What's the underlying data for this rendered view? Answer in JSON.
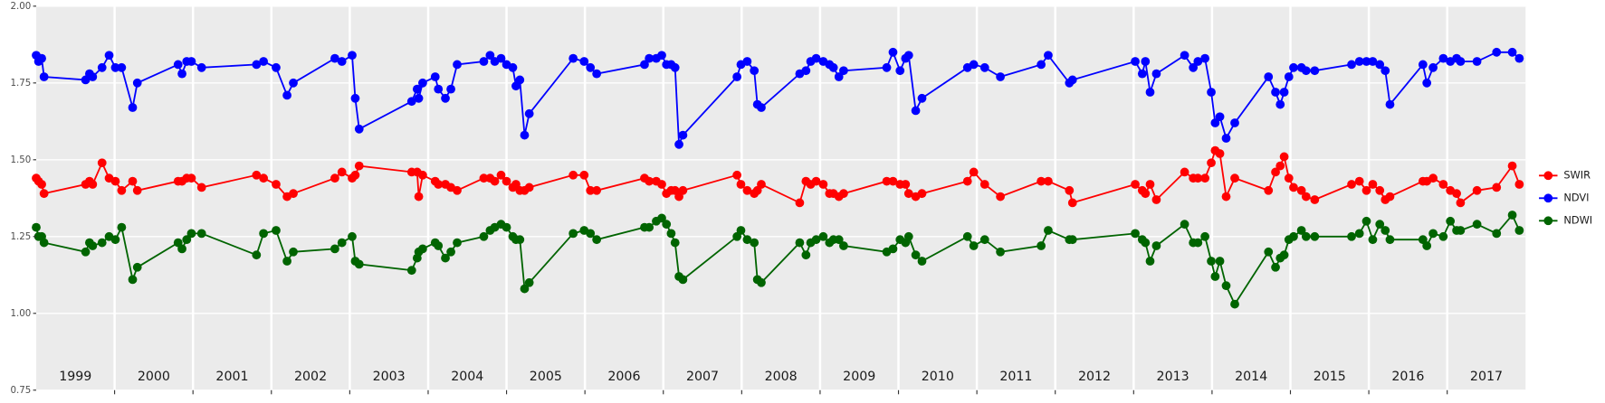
{
  "chart_data": {
    "type": "line",
    "x": [
      1999.0,
      1999.03,
      1999.07,
      1999.1,
      1999.63,
      1999.68,
      1999.72,
      1999.84,
      1999.93,
      2000.01,
      2000.09,
      2000.23,
      2000.29,
      2000.81,
      2000.86,
      2000.92,
      2000.98,
      2001.11,
      2001.81,
      2001.9,
      2002.06,
      2002.2,
      2002.28,
      2002.81,
      2002.9,
      2003.03,
      2003.07,
      2003.12,
      2003.79,
      2003.86,
      2003.88,
      2003.93,
      2004.09,
      2004.13,
      2004.22,
      2004.29,
      2004.37,
      2004.71,
      2004.79,
      2004.85,
      2004.93,
      2005.0,
      2005.08,
      2005.12,
      2005.17,
      2005.23,
      2005.29,
      2005.85,
      2005.99,
      2006.07,
      2006.15,
      2006.76,
      2006.82,
      2006.91,
      2006.98,
      2007.04,
      2007.1,
      2007.15,
      2007.2,
      2007.25,
      2007.94,
      2007.99,
      2008.07,
      2008.16,
      2008.2,
      2008.25,
      2008.74,
      2008.82,
      2008.88,
      2008.95,
      2009.04,
      2009.12,
      2009.17,
      2009.24,
      2009.3,
      2009.85,
      2009.93,
      2010.02,
      2010.09,
      2010.13,
      2010.22,
      2010.3,
      2010.88,
      2010.96,
      2011.1,
      2011.3,
      2011.82,
      2011.91,
      2012.18,
      2012.22,
      2013.02,
      2013.11,
      2013.15,
      2013.21,
      2013.29,
      2013.65,
      2013.76,
      2013.82,
      2013.91,
      2013.99,
      2014.04,
      2014.1,
      2014.18,
      2014.29,
      2014.72,
      2014.81,
      2014.87,
      2014.92,
      2014.98,
      2015.04,
      2015.14,
      2015.2,
      2015.31,
      2015.78,
      2015.88,
      2015.97,
      2016.05,
      2016.14,
      2016.21,
      2016.27,
      2016.69,
      2016.74,
      2016.82,
      2016.95,
      2017.04,
      2017.12,
      2017.17,
      2017.38,
      2017.63,
      2017.83,
      2017.92
    ],
    "series": [
      {
        "name": "SWIR",
        "color": "#ff0000",
        "values": [
          1.44,
          1.43,
          1.42,
          1.39,
          1.42,
          1.43,
          1.42,
          1.49,
          1.44,
          1.43,
          1.4,
          1.43,
          1.4,
          1.43,
          1.43,
          1.44,
          1.44,
          1.41,
          1.45,
          1.44,
          1.42,
          1.38,
          1.39,
          1.44,
          1.46,
          1.44,
          1.45,
          1.48,
          1.46,
          1.46,
          1.38,
          1.45,
          1.43,
          1.42,
          1.42,
          1.41,
          1.4,
          1.44,
          1.44,
          1.43,
          1.45,
          1.43,
          1.41,
          1.42,
          1.4,
          1.4,
          1.41,
          1.45,
          1.45,
          1.4,
          1.4,
          1.44,
          1.43,
          1.43,
          1.42,
          1.39,
          1.4,
          1.4,
          1.38,
          1.4,
          1.45,
          1.42,
          1.4,
          1.39,
          1.4,
          1.42,
          1.36,
          1.43,
          1.42,
          1.43,
          1.42,
          1.39,
          1.39,
          1.38,
          1.39,
          1.43,
          1.43,
          1.42,
          1.42,
          1.39,
          1.38,
          1.39,
          1.43,
          1.46,
          1.42,
          1.38,
          1.43,
          1.43,
          1.4,
          1.36,
          1.42,
          1.4,
          1.39,
          1.42,
          1.37,
          1.46,
          1.44,
          1.44,
          1.44,
          1.49,
          1.53,
          1.52,
          1.38,
          1.44,
          1.4,
          1.46,
          1.48,
          1.51,
          1.44,
          1.41,
          1.4,
          1.38,
          1.37,
          1.42,
          1.43,
          1.4,
          1.42,
          1.4,
          1.37,
          1.38,
          1.43,
          1.43,
          1.44,
          1.42,
          1.4,
          1.39,
          1.36,
          1.4,
          1.41,
          1.48,
          1.42
        ]
      },
      {
        "name": "NDVI",
        "color": "#0000ff",
        "values": [
          1.84,
          1.82,
          1.83,
          1.77,
          1.76,
          1.78,
          1.77,
          1.8,
          1.84,
          1.8,
          1.8,
          1.67,
          1.75,
          1.81,
          1.78,
          1.82,
          1.82,
          1.8,
          1.81,
          1.82,
          1.8,
          1.71,
          1.75,
          1.83,
          1.82,
          1.84,
          1.7,
          1.6,
          1.69,
          1.73,
          1.7,
          1.75,
          1.77,
          1.73,
          1.7,
          1.73,
          1.81,
          1.82,
          1.84,
          1.82,
          1.83,
          1.81,
          1.8,
          1.74,
          1.76,
          1.58,
          1.65,
          1.83,
          1.82,
          1.8,
          1.78,
          1.81,
          1.83,
          1.83,
          1.84,
          1.81,
          1.81,
          1.8,
          1.55,
          1.58,
          1.77,
          1.81,
          1.82,
          1.79,
          1.68,
          1.67,
          1.78,
          1.79,
          1.82,
          1.83,
          1.82,
          1.81,
          1.8,
          1.77,
          1.79,
          1.8,
          1.85,
          1.79,
          1.83,
          1.84,
          1.66,
          1.7,
          1.8,
          1.81,
          1.8,
          1.77,
          1.81,
          1.84,
          1.75,
          1.76,
          1.82,
          1.78,
          1.82,
          1.72,
          1.78,
          1.84,
          1.8,
          1.82,
          1.83,
          1.72,
          1.62,
          1.64,
          1.57,
          1.62,
          1.77,
          1.72,
          1.68,
          1.72,
          1.77,
          1.8,
          1.8,
          1.79,
          1.79,
          1.81,
          1.82,
          1.82,
          1.82,
          1.81,
          1.79,
          1.68,
          1.81,
          1.75,
          1.8,
          1.83,
          1.82,
          1.83,
          1.82,
          1.82,
          1.85,
          1.85,
          1.83
        ]
      },
      {
        "name": "NDWI",
        "color": "#006400",
        "values": [
          1.28,
          1.25,
          1.25,
          1.23,
          1.2,
          1.23,
          1.22,
          1.23,
          1.25,
          1.24,
          1.28,
          1.11,
          1.15,
          1.23,
          1.21,
          1.24,
          1.26,
          1.26,
          1.19,
          1.26,
          1.27,
          1.17,
          1.2,
          1.21,
          1.23,
          1.25,
          1.17,
          1.16,
          1.14,
          1.18,
          1.2,
          1.21,
          1.23,
          1.22,
          1.18,
          1.2,
          1.23,
          1.25,
          1.27,
          1.28,
          1.29,
          1.28,
          1.25,
          1.24,
          1.24,
          1.08,
          1.1,
          1.26,
          1.27,
          1.26,
          1.24,
          1.28,
          1.28,
          1.3,
          1.31,
          1.29,
          1.26,
          1.23,
          1.12,
          1.11,
          1.25,
          1.27,
          1.24,
          1.23,
          1.11,
          1.1,
          1.23,
          1.19,
          1.23,
          1.24,
          1.25,
          1.23,
          1.24,
          1.24,
          1.22,
          1.2,
          1.21,
          1.24,
          1.23,
          1.25,
          1.19,
          1.17,
          1.25,
          1.22,
          1.24,
          1.2,
          1.22,
          1.27,
          1.24,
          1.24,
          1.26,
          1.24,
          1.23,
          1.17,
          1.22,
          1.29,
          1.23,
          1.23,
          1.25,
          1.17,
          1.12,
          1.17,
          1.09,
          1.03,
          1.2,
          1.15,
          1.18,
          1.19,
          1.24,
          1.25,
          1.27,
          1.25,
          1.25,
          1.25,
          1.26,
          1.3,
          1.24,
          1.29,
          1.27,
          1.24,
          1.24,
          1.22,
          1.26,
          1.25,
          1.3,
          1.27,
          1.27,
          1.29,
          1.26,
          1.32,
          1.27
        ]
      }
    ],
    "xlim": [
      1999,
      2018
    ],
    "xticks": [
      {
        "value": 1999.5,
        "label": "1999"
      },
      {
        "value": 2000.5,
        "label": "2000"
      },
      {
        "value": 2001.5,
        "label": "2001"
      },
      {
        "value": 2002.5,
        "label": "2002"
      },
      {
        "value": 2003.5,
        "label": "2003"
      },
      {
        "value": 2004.5,
        "label": "2004"
      },
      {
        "value": 2005.5,
        "label": "2005"
      },
      {
        "value": 2006.5,
        "label": "2006"
      },
      {
        "value": 2007.5,
        "label": "2007"
      },
      {
        "value": 2008.5,
        "label": "2008"
      },
      {
        "value": 2009.5,
        "label": "2009"
      },
      {
        "value": 2010.5,
        "label": "2010"
      },
      {
        "value": 2011.5,
        "label": "2011"
      },
      {
        "value": 2012.5,
        "label": "2012"
      },
      {
        "value": 2013.5,
        "label": "2013"
      },
      {
        "value": 2014.5,
        "label": "2014"
      },
      {
        "value": 2015.5,
        "label": "2015"
      },
      {
        "value": 2016.5,
        "label": "2016"
      },
      {
        "value": 2017.5,
        "label": "2017"
      }
    ],
    "xgrid": [
      2000,
      2001,
      2002,
      2003,
      2004,
      2005,
      2006,
      2007,
      2008,
      2009,
      2010,
      2011,
      2012,
      2013,
      2014,
      2015,
      2016,
      2017
    ],
    "ylim": [
      0.75,
      2.0
    ],
    "yticks": [
      0.75,
      {
        "value": 1,
        "label": "1.00"
      },
      1.25,
      {
        "value": 1.5,
        "label": "1.50"
      },
      1.75,
      {
        "value": 2,
        "label": "2.00"
      }
    ],
    "grid": true,
    "legend": "right"
  }
}
